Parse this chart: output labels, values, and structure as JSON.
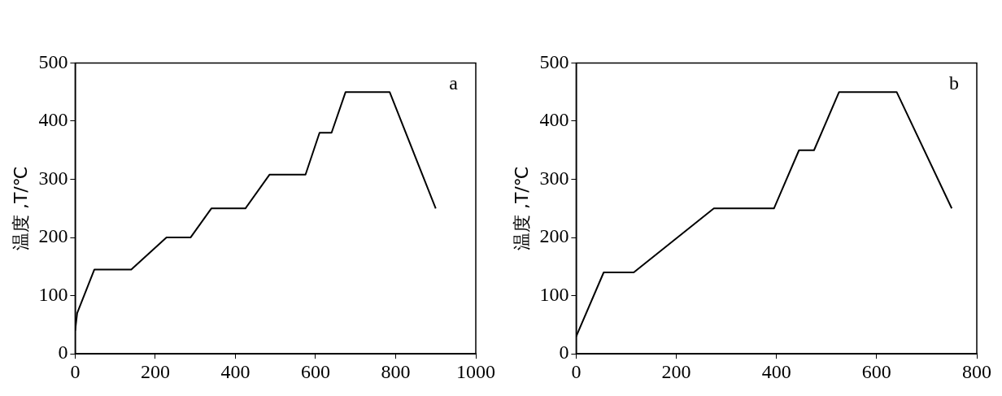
{
  "chart_data": [
    {
      "type": "line",
      "x": [
        0,
        5,
        48,
        140,
        228,
        288,
        340,
        425,
        485,
        575,
        610,
        640,
        675,
        785,
        900
      ],
      "values": [
        40,
        70,
        145,
        145,
        200,
        200,
        250,
        250,
        308,
        308,
        380,
        380,
        450,
        450,
        250
      ],
      "color": "#000000",
      "xlim": [
        0,
        1000
      ],
      "ylim": [
        0,
        500
      ],
      "xticks": [
        0,
        200,
        400,
        600,
        800,
        1000
      ],
      "yticks": [
        0,
        100,
        200,
        300,
        400,
        500
      ],
      "ylabel": "温度 ,T/℃",
      "annotations": [
        "a"
      ],
      "grid": false,
      "legend": false,
      "marker": "none",
      "line_style": "solid"
    },
    {
      "type": "line",
      "x": [
        0,
        55,
        115,
        275,
        395,
        445,
        475,
        525,
        640,
        750
      ],
      "values": [
        30,
        140,
        140,
        250,
        250,
        350,
        350,
        450,
        450,
        250
      ],
      "color": "#000000",
      "xlim": [
        0,
        800
      ],
      "ylim": [
        0,
        500
      ],
      "xticks": [
        0,
        200,
        400,
        600,
        800
      ],
      "yticks": [
        0,
        100,
        200,
        300,
        400,
        500
      ],
      "ylabel": "温度 ,T/℃",
      "annotations": [
        "b"
      ],
      "grid": false,
      "legend": false,
      "marker": "none",
      "line_style": "solid"
    }
  ]
}
